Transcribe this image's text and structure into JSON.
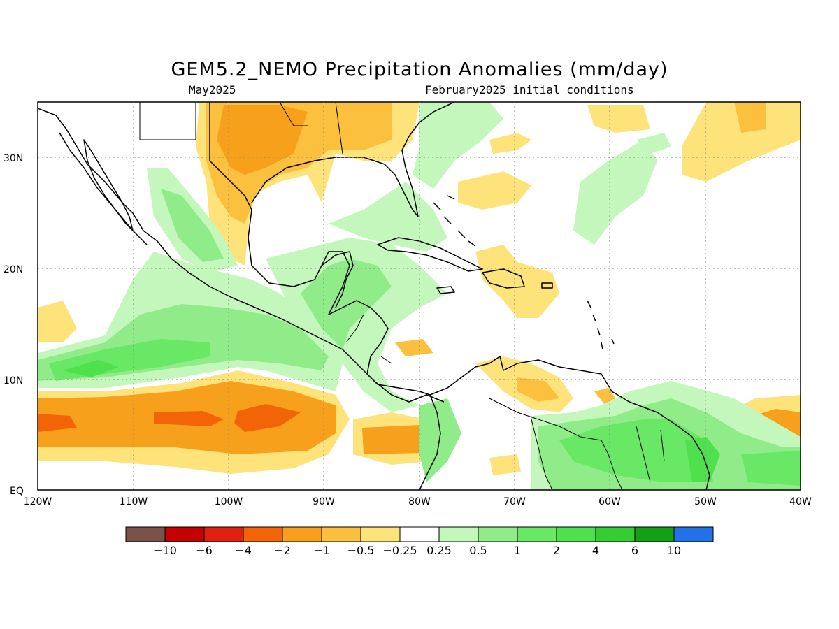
{
  "title": "GEM5.2_NEMO Precipitation Anomalies (mm/day)",
  "subtitle_left": "May2025",
  "subtitle_right": "February2025 initial conditions",
  "lat_labels": [
    "30N",
    "20N",
    "10N",
    "EQ"
  ],
  "lon_labels": [
    "120W",
    "110W",
    "100W",
    "90W",
    "80W",
    "70W",
    "60W",
    "50W",
    "40W"
  ],
  "legend": {
    "colors": [
      "#7a5249",
      "#c40000",
      "#e02010",
      "#f36408",
      "#f7a01c",
      "#fcc03f",
      "#fde37a",
      "#ffffff",
      "#c3f7bb",
      "#8fec89",
      "#69e866",
      "#4fe04d",
      "#33cc33",
      "#14a014",
      "#2271e8"
    ],
    "labels": [
      "−10",
      "−6",
      "−4",
      "−2",
      "−1",
      "−0.5",
      "−0.25",
      "0.25",
      "0.5",
      "1",
      "2",
      "4",
      "6",
      "10"
    ]
  }
}
